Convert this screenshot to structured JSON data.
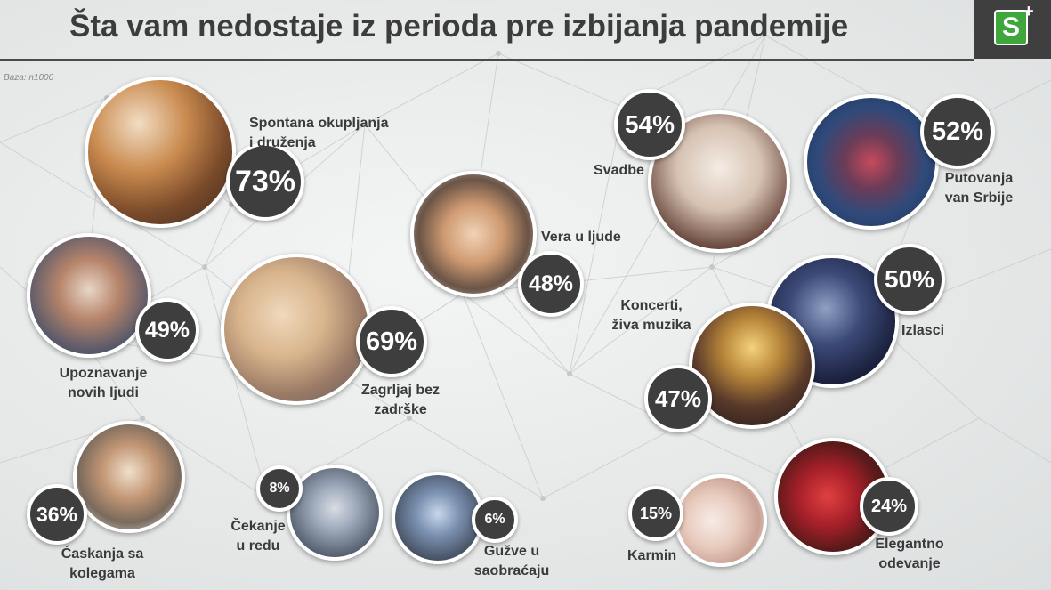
{
  "title": "Šta vam nedostaje iz perioda pre izbijanja pandemije",
  "logo": "S",
  "logo_plus": "+",
  "base_note": "Baza: n1000",
  "colors": {
    "badge": "#3e3e3e",
    "logo_green": "#3fa63c",
    "text": "#3c3c3c"
  },
  "items": [
    {
      "pct": "73%",
      "label1": "Spontana okupljanja",
      "label2": "i druženja"
    },
    {
      "pct": "69%",
      "label1": "Zagrljaj bez",
      "label2": "zadrške"
    },
    {
      "pct": "54%",
      "label1": "Svadbe"
    },
    {
      "pct": "52%",
      "label1": "Putovanja",
      "label2": "van Srbije"
    },
    {
      "pct": "50%",
      "label1": "Izlasci"
    },
    {
      "pct": "49%",
      "label1": "Upoznavanje",
      "label2": "novih ljudi"
    },
    {
      "pct": "48%",
      "label1": "Vera u ljude"
    },
    {
      "pct": "47%",
      "label1": "Koncerti,",
      "label2": "živa muzika"
    },
    {
      "pct": "36%",
      "label1": "Ćaskanja sa",
      "label2": "kolegama"
    },
    {
      "pct": "24%",
      "label1": "Elegantno",
      "label2": "odevanje"
    },
    {
      "pct": "15%",
      "label1": "Karmin"
    },
    {
      "pct": "8%",
      "label1": "Čekanje",
      "label2": "u redu"
    },
    {
      "pct": "6%",
      "label1": "Gužve u",
      "label2": "saobraćaju"
    }
  ]
}
